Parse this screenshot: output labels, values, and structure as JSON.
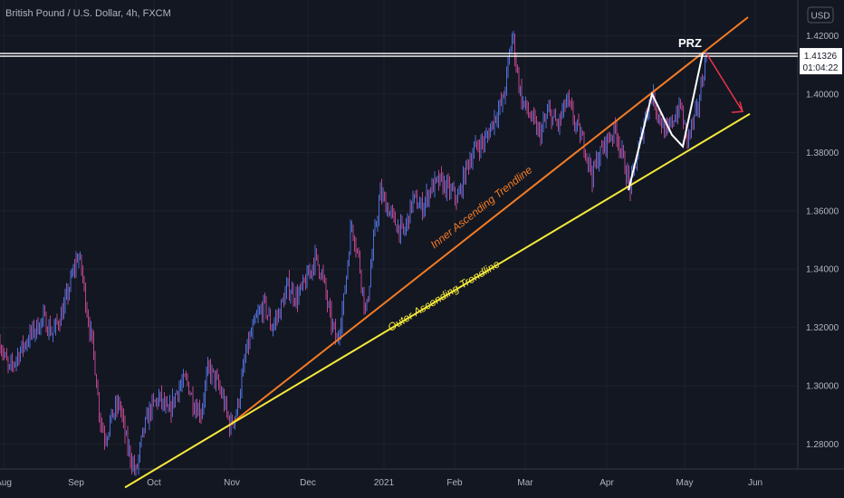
{
  "chart_data": {
    "type": "line",
    "title": "British Pound / U.S. Dollar, 4h, FXCM",
    "currency_badge": "USD",
    "x_tick_labels": [
      "Aug",
      "Sep",
      "Oct",
      "Nov",
      "Dec",
      "2021",
      "Feb",
      "Mar",
      "Apr",
      "May",
      "Jun"
    ],
    "y_tick_labels": [
      "1.42000",
      "1.40000",
      "1.38000",
      "1.36000",
      "1.34000",
      "1.32000",
      "1.30000",
      "1.28000"
    ],
    "y_ticks": [
      1.42,
      1.4,
      1.38,
      1.36,
      1.34,
      1.32,
      1.3,
      1.28
    ],
    "ylim": [
      1.2616,
      1.4322
    ],
    "grid": true,
    "price_line": {
      "value": 1.41326,
      "label": "1.41326",
      "countdown": "01:04:22"
    },
    "price_path": [
      [
        0,
        1.315
      ],
      [
        10,
        1.305
      ],
      [
        22,
        1.312
      ],
      [
        35,
        1.318
      ],
      [
        48,
        1.323
      ],
      [
        58,
        1.318
      ],
      [
        70,
        1.326
      ],
      [
        80,
        1.338
      ],
      [
        86,
        1.345
      ],
      [
        90,
        1.34
      ],
      [
        96,
        1.326
      ],
      [
        104,
        1.31
      ],
      [
        110,
        1.29
      ],
      [
        116,
        1.282
      ],
      [
        124,
        1.29
      ],
      [
        132,
        1.294
      ],
      [
        140,
        1.28
      ],
      [
        150,
        1.27
      ],
      [
        158,
        1.284
      ],
      [
        166,
        1.292
      ],
      [
        176,
        1.296
      ],
      [
        186,
        1.29
      ],
      [
        196,
        1.299
      ],
      [
        206,
        1.302
      ],
      [
        214,
        1.294
      ],
      [
        222,
        1.291
      ],
      [
        230,
        1.306
      ],
      [
        238,
        1.302
      ],
      [
        246,
        1.296
      ],
      [
        254,
        1.286
      ],
      [
        262,
        1.292
      ],
      [
        272,
        1.312
      ],
      [
        282,
        1.322
      ],
      [
        292,
        1.328
      ],
      [
        300,
        1.32
      ],
      [
        308,
        1.325
      ],
      [
        318,
        1.334
      ],
      [
        328,
        1.33
      ],
      [
        338,
        1.336
      ],
      [
        348,
        1.344
      ],
      [
        356,
        1.338
      ],
      [
        364,
        1.324
      ],
      [
        372,
        1.315
      ],
      [
        380,
        1.33
      ],
      [
        388,
        1.356
      ],
      [
        396,
        1.344
      ],
      [
        404,
        1.324
      ],
      [
        412,
        1.348
      ],
      [
        420,
        1.366
      ],
      [
        428,
        1.361
      ],
      [
        436,
        1.356
      ],
      [
        446,
        1.352
      ],
      [
        456,
        1.364
      ],
      [
        466,
        1.361
      ],
      [
        476,
        1.368
      ],
      [
        486,
        1.37
      ],
      [
        496,
        1.367
      ],
      [
        506,
        1.364
      ],
      [
        516,
        1.376
      ],
      [
        526,
        1.382
      ],
      [
        536,
        1.384
      ],
      [
        546,
        1.392
      ],
      [
        556,
        1.398
      ],
      [
        562,
        1.412
      ],
      [
        566,
        1.421
      ],
      [
        570,
        1.41
      ],
      [
        576,
        1.398
      ],
      [
        586,
        1.392
      ],
      [
        596,
        1.386
      ],
      [
        606,
        1.394
      ],
      [
        616,
        1.389
      ],
      [
        626,
        1.398
      ],
      [
        636,
        1.389
      ],
      [
        646,
        1.382
      ],
      [
        654,
        1.372
      ],
      [
        660,
        1.378
      ],
      [
        670,
        1.384
      ],
      [
        680,
        1.388
      ],
      [
        690,
        1.375
      ],
      [
        696,
        1.368
      ],
      [
        704,
        1.379
      ],
      [
        712,
        1.392
      ],
      [
        720,
        1.4
      ],
      [
        728,
        1.392
      ],
      [
        736,
        1.386
      ],
      [
        744,
        1.392
      ],
      [
        752,
        1.396
      ],
      [
        758,
        1.384
      ],
      [
        764,
        1.389
      ],
      [
        770,
        1.394
      ],
      [
        776,
        1.406
      ],
      [
        780,
        1.413
      ]
    ],
    "trendlines": [
      {
        "name": "Inner Ascending Trendline",
        "color": "#f57c24",
        "from": [
          255,
          1.287
        ],
        "to": [
          826,
          1.4263
        ]
      },
      {
        "name": "Outer Ascending Trendline",
        "color": "#f5e93a",
        "from": [
          138,
          1.2652
        ],
        "to": [
          828,
          1.3932
        ]
      }
    ],
    "pattern": {
      "label": "PRZ",
      "points": [
        [
          694,
          1.367
        ],
        [
          720,
          1.4
        ],
        [
          742,
          1.386
        ],
        [
          754,
          1.382
        ],
        [
          776,
          1.414
        ]
      ],
      "forecast_arrow": {
        "from": [
          780,
          1.414
        ],
        "to": [
          820,
          1.394
        ],
        "color": "#e8344c"
      }
    },
    "horizontal_level": 1.41326
  }
}
